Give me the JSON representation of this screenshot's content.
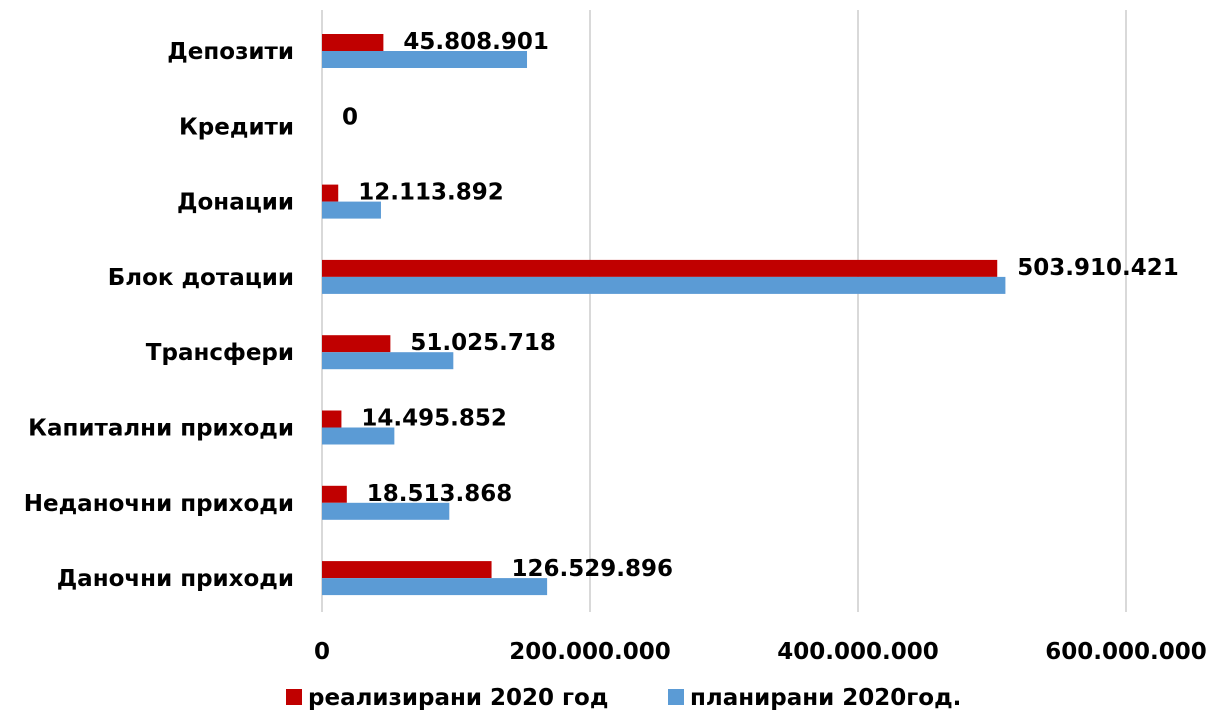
{
  "chart_data": {
    "type": "bar",
    "orientation": "horizontal",
    "categories": [
      "Депозити",
      "Кредити",
      "Донации",
      "Блок дотации",
      "Трансфери",
      "Капитални приходи",
      "Неданочни приходи",
      "Даночни приходи"
    ],
    "series": [
      {
        "name": "реализирани  2020 год",
        "color": "#C00000",
        "values": [
          45808901,
          0,
          12113892,
          503910421,
          51025718,
          14495852,
          18513868,
          126529896
        ],
        "data_labels": [
          "45.808.901",
          "0",
          "12.113.892",
          "503.910.421",
          "51.025.718",
          "14.495.852",
          "18.513.868",
          "126.529.896"
        ]
      },
      {
        "name": "планирани 2020год.",
        "color": "#5B9BD5",
        "values": [
          153000000,
          0,
          44000000,
          510000000,
          98000000,
          54000000,
          95000000,
          168000000
        ]
      }
    ],
    "xlim": [
      0,
      650000000
    ],
    "x_ticks": [
      {
        "value": 0,
        "label": "0"
      },
      {
        "value": 200000000,
        "label": "200.000.000"
      },
      {
        "value": 400000000,
        "label": "400.000.000"
      },
      {
        "value": 600000000,
        "label": "600.000.000"
      }
    ],
    "grid": "vertical",
    "legend_position": "bottom"
  }
}
